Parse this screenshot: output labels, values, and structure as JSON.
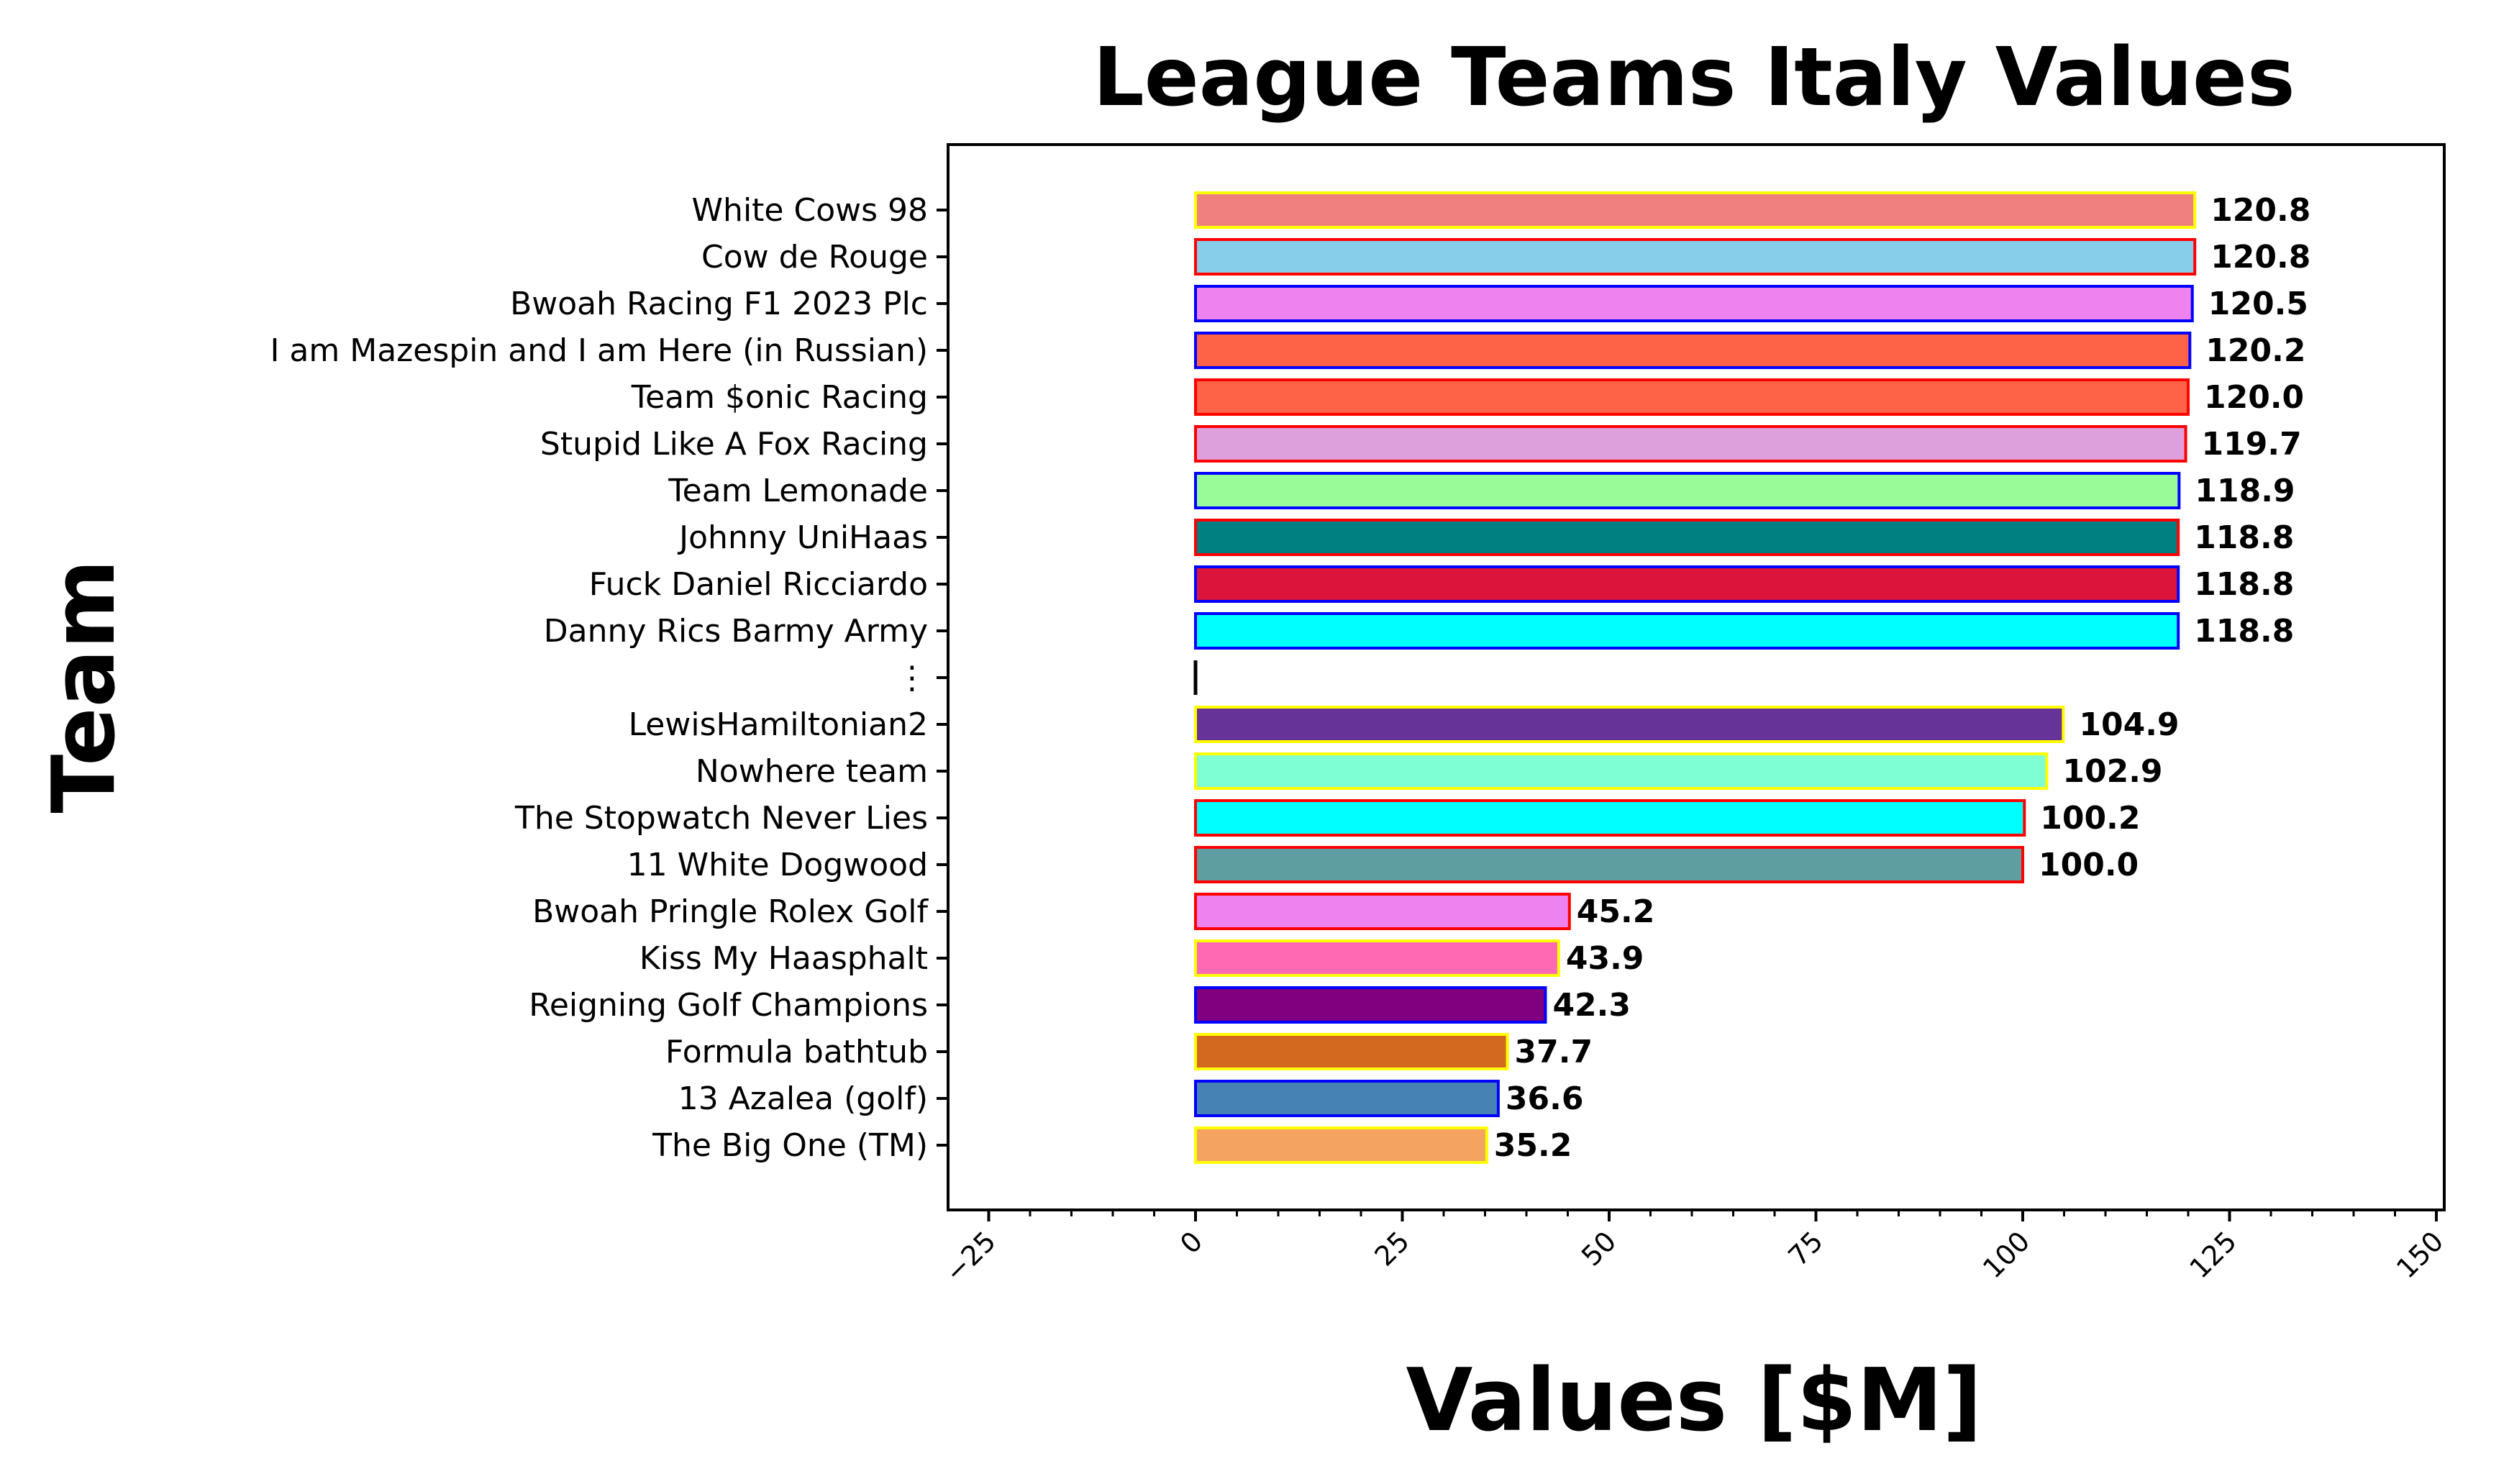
{
  "chart_data": {
    "type": "bar",
    "orientation": "horizontal",
    "title": "League Teams Italy Values",
    "xlabel": "Values [$M]",
    "ylabel": "Team",
    "xlim": [
      -30,
      151
    ],
    "xticks": [
      -25,
      0,
      25,
      50,
      75,
      100,
      125,
      150
    ],
    "xtick_labels": [
      "−25",
      "0",
      "25",
      "50",
      "75",
      "100",
      "125",
      "150"
    ],
    "grid": false,
    "categories": [
      "White Cows 98",
      "Cow de Rouge",
      "Bwoah Racing F1 2023 Plc",
      "I am Mazespin and I am Here (in Russian)",
      "Team $onic Racing",
      "Stupid Like A Fox Racing",
      "Team Lemonade",
      "Johnny UniHaas",
      "Fuck Daniel Ricciardo",
      "Danny Rics Barmy Army",
      "⋮",
      "LewisHamiltonian2",
      "Nowhere team",
      "The Stopwatch Never Lies",
      "11 White Dogwood",
      "Bwoah Pringle Rolex Golf",
      "Kiss My Haasphalt",
      "Reigning Golf Champions",
      "Formula bathtub",
      "13 Azalea (golf)",
      "The Big One (TM)"
    ],
    "values": [
      120.8,
      120.8,
      120.5,
      120.2,
      120.0,
      119.7,
      118.9,
      118.8,
      118.8,
      118.8,
      0,
      104.9,
      102.9,
      100.2,
      100.0,
      45.2,
      43.9,
      42.3,
      37.7,
      36.6,
      35.2
    ],
    "value_labels": [
      "120.8",
      "120.8",
      "120.5",
      "120.2",
      "120.0",
      "119.7",
      "118.9",
      "118.8",
      "118.8",
      "118.8",
      "",
      "104.9",
      "102.9",
      "100.2",
      "100.0",
      "45.2",
      "43.9",
      "42.3",
      "37.7",
      "36.6",
      "35.2"
    ],
    "fill_colors": [
      "#f08080",
      "#87ceeb",
      "#ee82ee",
      "#ff6347",
      "#ff6347",
      "#dda0dd",
      "#98fb98",
      "#008080",
      "#dc143c",
      "#00ffff",
      "#000000",
      "#663399",
      "#7fffd4",
      "#00ffff",
      "#5f9ea0",
      "#ee82ee",
      "#ff69b4",
      "#800080",
      "#d2691e",
      "#4682b4",
      "#f4a460"
    ],
    "edge_colors": [
      "#ffff00",
      "#ff0000",
      "#0000ff",
      "#0000ff",
      "#ff0000",
      "#ff0000",
      "#0000ff",
      "#ff0000",
      "#0000ff",
      "#0000ff",
      "#000000",
      "#ffff00",
      "#ffff00",
      "#ff0000",
      "#ff0000",
      "#ff0000",
      "#ffff00",
      "#0000ff",
      "#ffff00",
      "#0000ff",
      "#ffff00"
    ]
  }
}
